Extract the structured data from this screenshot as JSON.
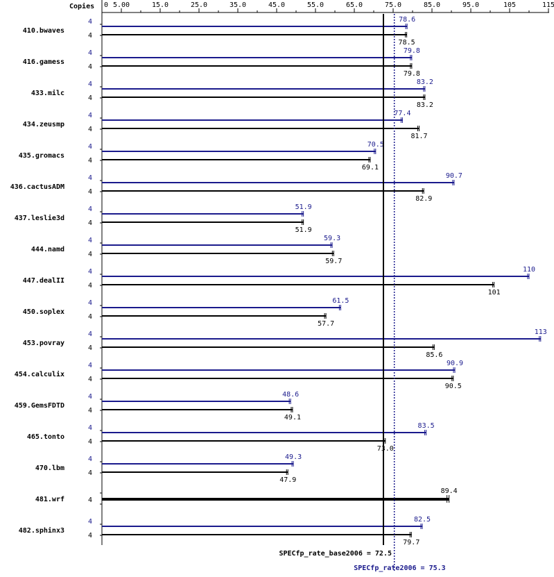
{
  "chart_data": {
    "type": "bar",
    "orientation": "horizontal",
    "copies_label": "Copies",
    "x_ticks": [
      "0",
      "5.00",
      "15.0",
      "25.0",
      "35.0",
      "45.0",
      "55.0",
      "65.0",
      "75.0",
      "85.0",
      "95.0",
      "105",
      "115"
    ],
    "minor_ticks": [
      10,
      20,
      30,
      40,
      50,
      60,
      70,
      80,
      90,
      100,
      110
    ],
    "xlim": [
      0,
      115
    ],
    "colors": {
      "base": "#000000",
      "peak": "#1a1a8c",
      "background": "#ffffff"
    },
    "benchmarks": [
      {
        "name": "410.bwaves",
        "peak_copies": "4",
        "base_copies": "4",
        "peak": 78.6,
        "base": 78.5,
        "peak_label": "78.6",
        "base_label": "78.5"
      },
      {
        "name": "416.gamess",
        "peak_copies": "4",
        "base_copies": "4",
        "peak": 79.8,
        "base": 79.8,
        "peak_label": "79.8",
        "base_label": "79.8"
      },
      {
        "name": "433.milc",
        "peak_copies": "4",
        "base_copies": "4",
        "peak": 83.2,
        "base": 83.2,
        "peak_label": "83.2",
        "base_label": "83.2"
      },
      {
        "name": "434.zeusmp",
        "peak_copies": "4",
        "base_copies": "4",
        "peak": 77.4,
        "base": 81.7,
        "peak_label": "77.4",
        "base_label": "81.7"
      },
      {
        "name": "435.gromacs",
        "peak_copies": "4",
        "base_copies": "4",
        "peak": 70.5,
        "base": 69.1,
        "peak_label": "70.5",
        "base_label": "69.1"
      },
      {
        "name": "436.cactusADM",
        "peak_copies": "4",
        "base_copies": "4",
        "peak": 90.7,
        "base": 82.9,
        "peak_label": "90.7",
        "base_label": "82.9"
      },
      {
        "name": "437.leslie3d",
        "peak_copies": "4",
        "base_copies": "4",
        "peak": 51.9,
        "base": 51.9,
        "peak_label": "51.9",
        "base_label": "51.9"
      },
      {
        "name": "444.namd",
        "peak_copies": "4",
        "base_copies": "4",
        "peak": 59.3,
        "base": 59.7,
        "peak_label": "59.3",
        "base_label": "59.7"
      },
      {
        "name": "447.dealII",
        "peak_copies": "4",
        "base_copies": "4",
        "peak": 110,
        "base": 101,
        "peak_label": "110",
        "base_label": "101"
      },
      {
        "name": "450.soplex",
        "peak_copies": "4",
        "base_copies": "4",
        "peak": 61.5,
        "base": 57.7,
        "peak_label": "61.5",
        "base_label": "57.7"
      },
      {
        "name": "453.povray",
        "peak_copies": "4",
        "base_copies": "4",
        "peak": 113,
        "base": 85.6,
        "peak_label": "113",
        "base_label": "85.6"
      },
      {
        "name": "454.calculix",
        "peak_copies": "4",
        "base_copies": "4",
        "peak": 90.9,
        "base": 90.5,
        "peak_label": "90.9",
        "base_label": "90.5"
      },
      {
        "name": "459.GemsFDTD",
        "peak_copies": "4",
        "base_copies": "4",
        "peak": 48.6,
        "base": 49.1,
        "peak_label": "48.6",
        "base_label": "49.1"
      },
      {
        "name": "465.tonto",
        "peak_copies": "4",
        "base_copies": "4",
        "peak": 83.5,
        "base": 73.0,
        "peak_label": "83.5",
        "base_label": "73.0"
      },
      {
        "name": "470.lbm",
        "peak_copies": "4",
        "base_copies": "4",
        "peak": 49.3,
        "base": 47.9,
        "peak_label": "49.3",
        "base_label": "47.9"
      },
      {
        "name": "481.wrf",
        "single_copies": "4",
        "single": 89.4,
        "single_label": "89.4"
      },
      {
        "name": "482.sphinx3",
        "peak_copies": "4",
        "base_copies": "4",
        "peak": 82.5,
        "base": 79.7,
        "peak_label": "82.5",
        "base_label": "79.7"
      }
    ],
    "summary": {
      "base_value": 72.5,
      "peak_value": 75.3,
      "base_label": "SPECfp_rate_base2006 = 72.5",
      "peak_label": "SPECfp_rate2006 = 75.3"
    }
  }
}
